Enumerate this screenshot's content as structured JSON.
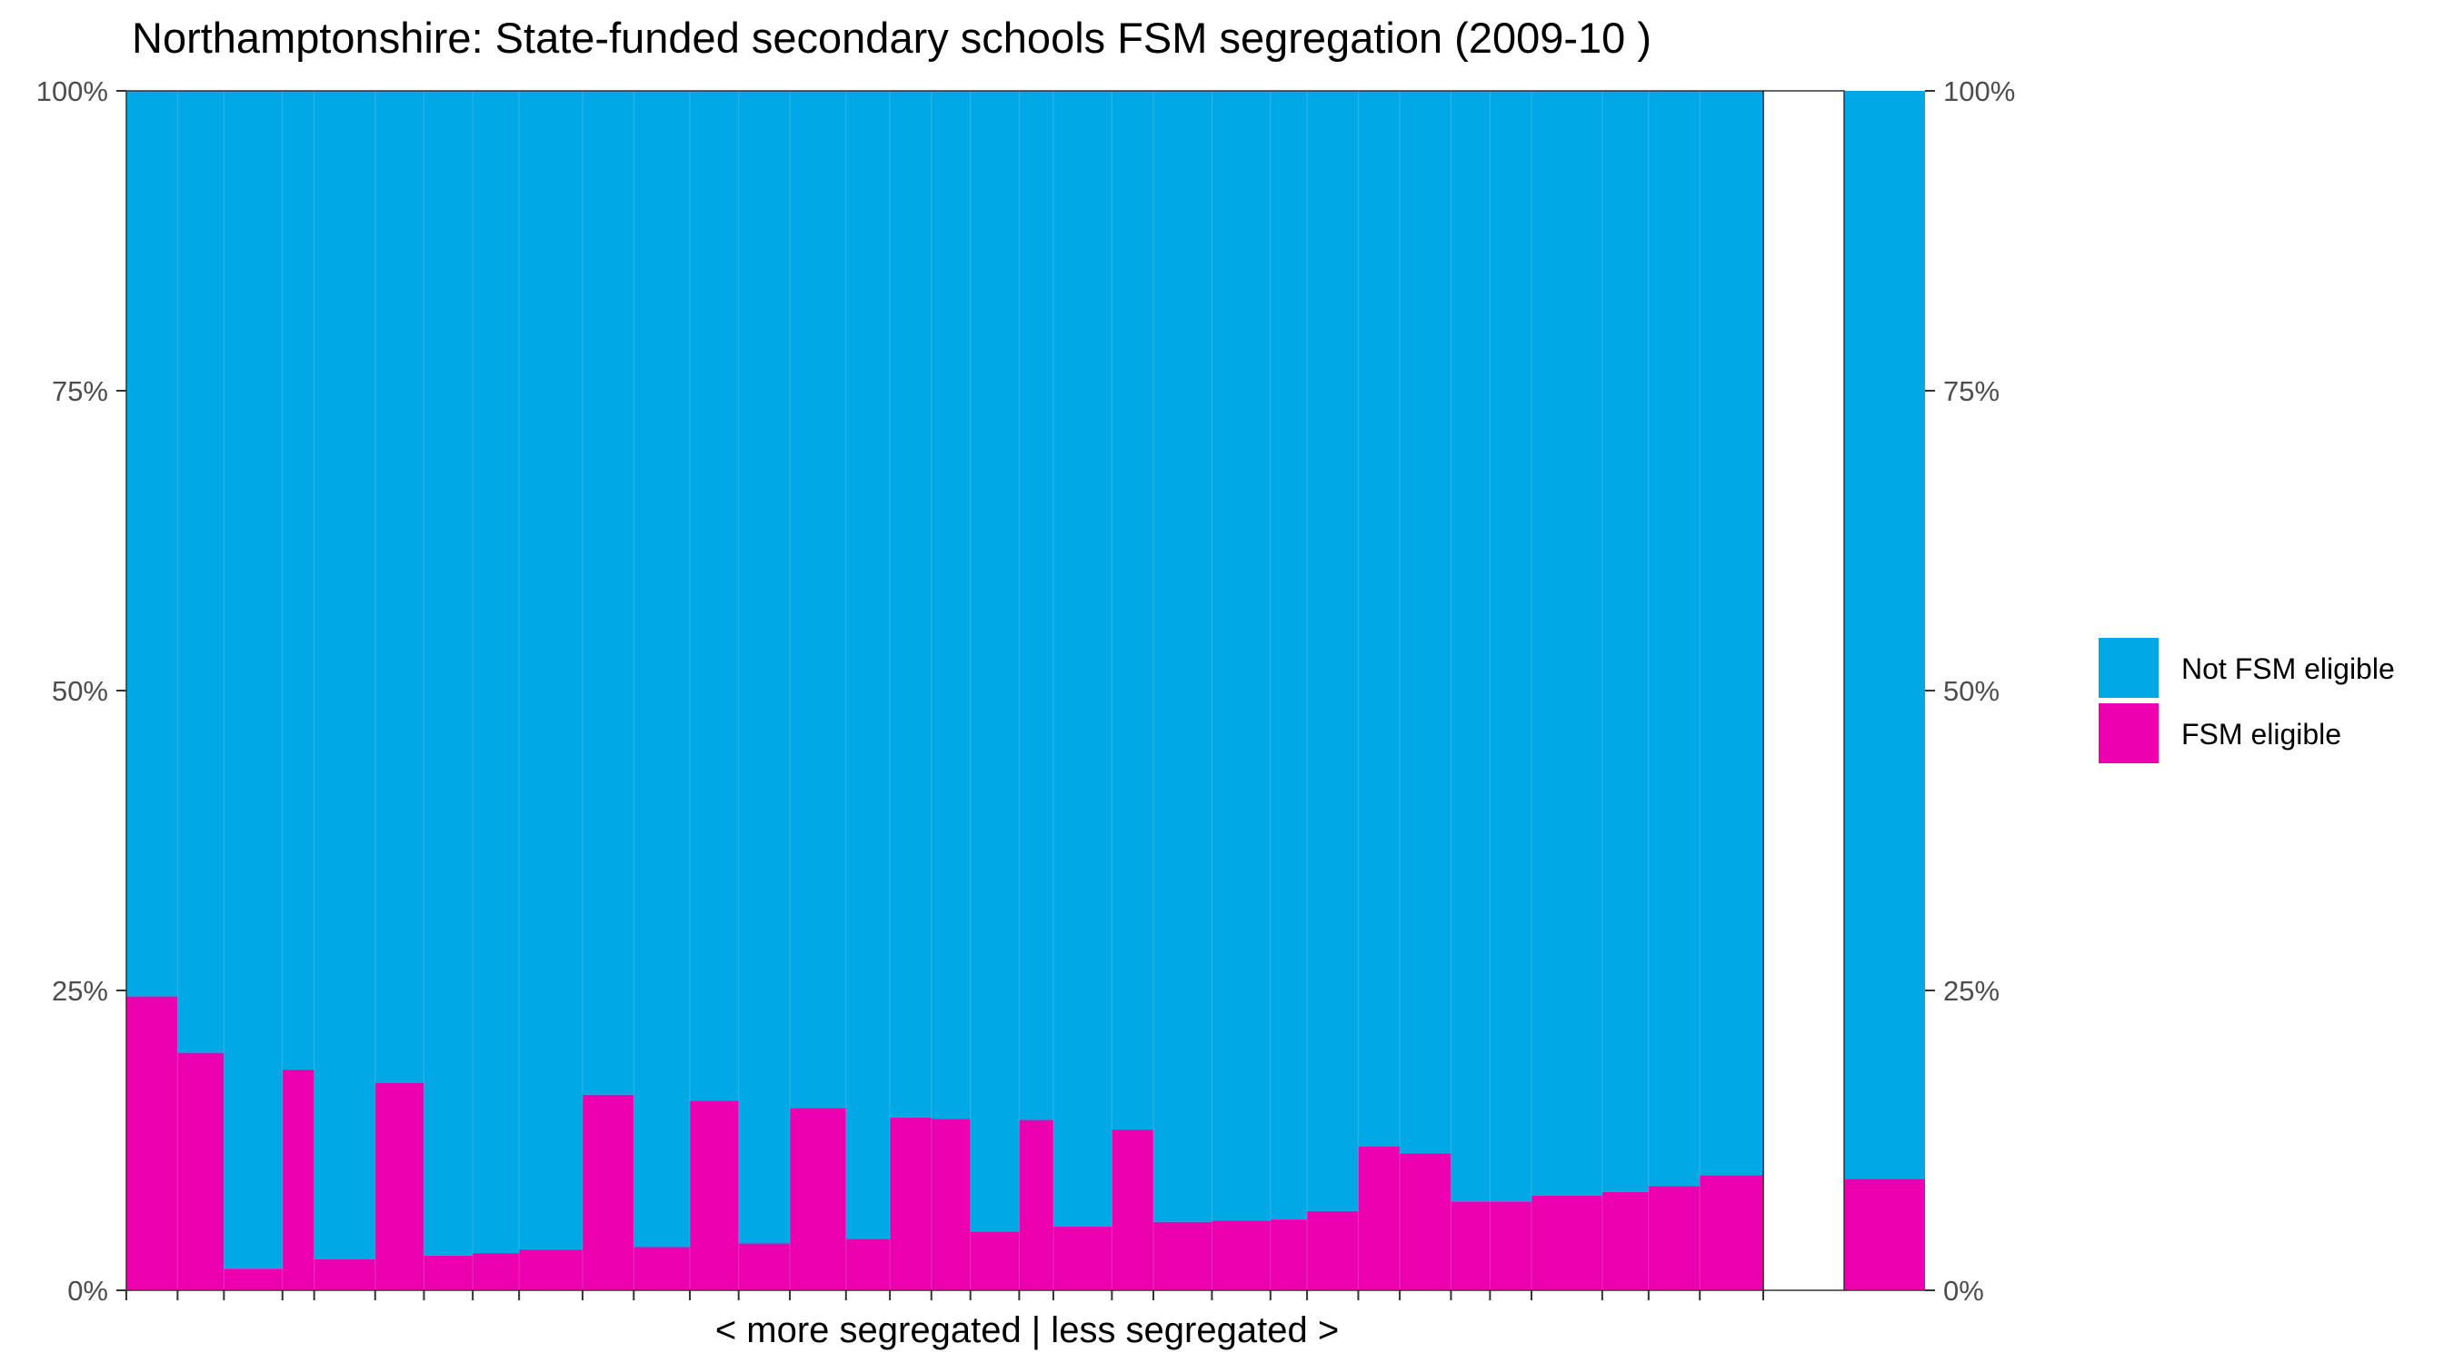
{
  "chart_data": {
    "type": "bar",
    "subtype": "stacked-100-variable-width",
    "title": "Northamptonshire: State-funded secondary schools FSM segregation (2009-10 )",
    "xlabel": "< more segregated | less segregated >",
    "ylabel": "",
    "ylim": [
      0,
      100
    ],
    "y_ticks": [
      "0%",
      "25%",
      "50%",
      "75%",
      "100%"
    ],
    "y_tick_values": [
      0,
      25,
      50,
      75,
      100
    ],
    "secondary_y_axis": true,
    "grid": false,
    "legend_position": "right",
    "colors": {
      "not_fsm": "#00A8E6",
      "fsm": "#EB00B0"
    },
    "series": [
      {
        "name": "Not FSM eligible",
        "key": "not_fsm"
      },
      {
        "name": "FSM eligible",
        "key": "fsm"
      }
    ],
    "schools": [
      {
        "fsm_pct": 24.5,
        "relative_size": 1.05
      },
      {
        "fsm_pct": 19.8,
        "relative_size": 0.95
      },
      {
        "fsm_pct": 1.8,
        "relative_size": 1.2
      },
      {
        "fsm_pct": 18.4,
        "relative_size": 0.65
      },
      {
        "fsm_pct": 2.6,
        "relative_size": 1.25
      },
      {
        "fsm_pct": 17.3,
        "relative_size": 1.0
      },
      {
        "fsm_pct": 2.9,
        "relative_size": 1.0
      },
      {
        "fsm_pct": 3.1,
        "relative_size": 0.95
      },
      {
        "fsm_pct": 3.4,
        "relative_size": 1.3
      },
      {
        "fsm_pct": 16.3,
        "relative_size": 1.05
      },
      {
        "fsm_pct": 3.6,
        "relative_size": 1.15
      },
      {
        "fsm_pct": 15.8,
        "relative_size": 1.0
      },
      {
        "fsm_pct": 3.9,
        "relative_size": 1.05
      },
      {
        "fsm_pct": 15.2,
        "relative_size": 1.15
      },
      {
        "fsm_pct": 4.3,
        "relative_size": 0.9
      },
      {
        "fsm_pct": 14.4,
        "relative_size": 0.85
      },
      {
        "fsm_pct": 14.3,
        "relative_size": 0.8
      },
      {
        "fsm_pct": 4.9,
        "relative_size": 1.0
      },
      {
        "fsm_pct": 14.2,
        "relative_size": 0.7
      },
      {
        "fsm_pct": 5.3,
        "relative_size": 1.2
      },
      {
        "fsm_pct": 13.4,
        "relative_size": 0.85
      },
      {
        "fsm_pct": 5.7,
        "relative_size": 1.2
      },
      {
        "fsm_pct": 5.8,
        "relative_size": 1.2
      },
      {
        "fsm_pct": 5.9,
        "relative_size": 0.75
      },
      {
        "fsm_pct": 6.6,
        "relative_size": 1.05
      },
      {
        "fsm_pct": 12.0,
        "relative_size": 0.85
      },
      {
        "fsm_pct": 11.4,
        "relative_size": 1.05
      },
      {
        "fsm_pct": 7.4,
        "relative_size": 0.8
      },
      {
        "fsm_pct": 7.4,
        "relative_size": 0.85
      },
      {
        "fsm_pct": 7.9,
        "relative_size": 1.45
      },
      {
        "fsm_pct": 8.2,
        "relative_size": 0.95
      },
      {
        "fsm_pct": 8.7,
        "relative_size": 1.05
      },
      {
        "fsm_pct": 9.6,
        "relative_size": 1.3
      }
    ],
    "overall": {
      "fsm_pct": 9.3
    }
  }
}
